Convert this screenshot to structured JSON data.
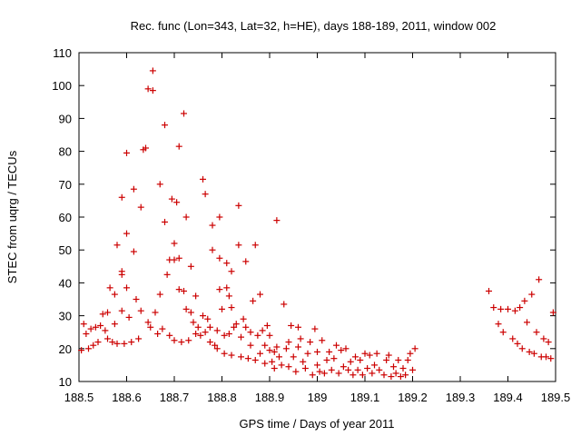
{
  "chart_data": {
    "type": "scatter",
    "title": "Rec. func (Lon=343, Lat=32, h=HE), days 188-189, 2011, window 002",
    "xlabel": "GPS time / Days of year 2011",
    "ylabel": "STEC from uqrg / TECUs",
    "xlim": [
      188.5,
      189.5
    ],
    "ylim": [
      10,
      110
    ],
    "xticks": [
      188.5,
      188.6,
      188.7,
      188.8,
      188.9,
      189.0,
      189.1,
      189.2,
      189.3,
      189.4,
      189.5
    ],
    "xtick_labels": [
      "188.5",
      "188.6",
      "188.7",
      "188.8",
      "188.9",
      "189",
      "189.1",
      "189.2",
      "189.3",
      "189.4",
      "189.5"
    ],
    "yticks": [
      10,
      20,
      30,
      40,
      50,
      60,
      70,
      80,
      90,
      100,
      110
    ],
    "ytick_labels": [
      "10",
      "20",
      "30",
      "40",
      "50",
      "60",
      "70",
      "80",
      "90",
      "100",
      "110"
    ],
    "marker_color": "#cc0000",
    "series": [
      {
        "name": "STEC",
        "points": [
          [
            188.505,
            19.5
          ],
          [
            188.51,
            27.5
          ],
          [
            188.515,
            24.5
          ],
          [
            188.52,
            20.0
          ],
          [
            188.525,
            26.0
          ],
          [
            188.53,
            21.0
          ],
          [
            188.535,
            26.5
          ],
          [
            188.54,
            22.0
          ],
          [
            188.545,
            27.0
          ],
          [
            188.55,
            30.5
          ],
          [
            188.555,
            25.5
          ],
          [
            188.56,
            23.0
          ],
          [
            188.56,
            31.0
          ],
          [
            188.565,
            38.5
          ],
          [
            188.57,
            22.0
          ],
          [
            188.575,
            27.5
          ],
          [
            188.575,
            36.5
          ],
          [
            188.58,
            51.5
          ],
          [
            188.58,
            21.5
          ],
          [
            188.59,
            31.5
          ],
          [
            188.59,
            42.5
          ],
          [
            188.59,
            43.5
          ],
          [
            188.59,
            66.0
          ],
          [
            188.595,
            21.5
          ],
          [
            188.6,
            79.5
          ],
          [
            188.6,
            55.0
          ],
          [
            188.6,
            38.5
          ],
          [
            188.605,
            29.5
          ],
          [
            188.61,
            22.0
          ],
          [
            188.615,
            49.5
          ],
          [
            188.615,
            68.5
          ],
          [
            188.62,
            35.0
          ],
          [
            188.625,
            23.0
          ],
          [
            188.63,
            63.0
          ],
          [
            188.63,
            31.5
          ],
          [
            188.635,
            80.5
          ],
          [
            188.64,
            81.0
          ],
          [
            188.645,
            28.0
          ],
          [
            188.645,
            99.0
          ],
          [
            188.65,
            26.5
          ],
          [
            188.655,
            98.5
          ],
          [
            188.655,
            104.5
          ],
          [
            188.66,
            31.0
          ],
          [
            188.665,
            24.5
          ],
          [
            188.67,
            70.0
          ],
          [
            188.67,
            36.5
          ],
          [
            188.675,
            26.0
          ],
          [
            188.68,
            88.0
          ],
          [
            188.68,
            58.5
          ],
          [
            188.685,
            42.5
          ],
          [
            188.69,
            24.0
          ],
          [
            188.69,
            47.0
          ],
          [
            188.695,
            65.5
          ],
          [
            188.7,
            52.0
          ],
          [
            188.7,
            47.0
          ],
          [
            188.7,
            22.5
          ],
          [
            188.705,
            64.5
          ],
          [
            188.71,
            81.5
          ],
          [
            188.71,
            47.5
          ],
          [
            188.71,
            38.0
          ],
          [
            188.715,
            22.0
          ],
          [
            188.72,
            37.5
          ],
          [
            188.72,
            91.5
          ],
          [
            188.725,
            32.0
          ],
          [
            188.725,
            60.0
          ],
          [
            188.73,
            22.5
          ],
          [
            188.735,
            31.0
          ],
          [
            188.735,
            45.0
          ],
          [
            188.74,
            28.0
          ],
          [
            188.745,
            36.0
          ],
          [
            188.745,
            24.5
          ],
          [
            188.75,
            26.5
          ],
          [
            188.755,
            24.0
          ],
          [
            188.76,
            30.0
          ],
          [
            188.76,
            71.5
          ],
          [
            188.765,
            67.0
          ],
          [
            188.765,
            25.0
          ],
          [
            188.77,
            29.0
          ],
          [
            188.775,
            26.5
          ],
          [
            188.775,
            22.0
          ],
          [
            188.78,
            57.5
          ],
          [
            188.78,
            50.0
          ],
          [
            188.785,
            21.0
          ],
          [
            188.79,
            25.5
          ],
          [
            188.79,
            20.0
          ],
          [
            188.795,
            47.5
          ],
          [
            188.795,
            38.0
          ],
          [
            188.795,
            60.0
          ],
          [
            188.8,
            32.0
          ],
          [
            188.805,
            24.0
          ],
          [
            188.805,
            18.5
          ],
          [
            188.81,
            46.0
          ],
          [
            188.81,
            38.5
          ],
          [
            188.815,
            36.0
          ],
          [
            188.815,
            24.5
          ],
          [
            188.82,
            43.5
          ],
          [
            188.82,
            32.5
          ],
          [
            188.82,
            18.0
          ],
          [
            188.825,
            26.5
          ],
          [
            188.83,
            27.5
          ],
          [
            188.835,
            63.5
          ],
          [
            188.835,
            51.5
          ],
          [
            188.84,
            17.5
          ],
          [
            188.84,
            23.5
          ],
          [
            188.845,
            29.0
          ],
          [
            188.85,
            46.5
          ],
          [
            188.85,
            26.5
          ],
          [
            188.855,
            17.0
          ],
          [
            188.86,
            25.0
          ],
          [
            188.86,
            21.0
          ],
          [
            188.865,
            34.5
          ],
          [
            188.87,
            51.5
          ],
          [
            188.87,
            16.5
          ],
          [
            188.875,
            24.0
          ],
          [
            188.88,
            36.5
          ],
          [
            188.88,
            18.5
          ],
          [
            188.885,
            25.5
          ],
          [
            188.89,
            15.5
          ],
          [
            188.89,
            21.0
          ],
          [
            188.895,
            27.0
          ],
          [
            188.9,
            19.5
          ],
          [
            188.9,
            24.0
          ],
          [
            188.905,
            16.0
          ],
          [
            188.91,
            14.0
          ],
          [
            188.91,
            19.0
          ],
          [
            188.915,
            59.0
          ],
          [
            188.915,
            20.5
          ],
          [
            188.92,
            17.5
          ],
          [
            188.925,
            15.0
          ],
          [
            188.93,
            33.5
          ],
          [
            188.935,
            20.0
          ],
          [
            188.94,
            14.5
          ],
          [
            188.94,
            22.0
          ],
          [
            188.945,
            27.0
          ],
          [
            188.95,
            17.5
          ],
          [
            188.955,
            13.0
          ],
          [
            188.96,
            20.5
          ],
          [
            188.96,
            26.5
          ],
          [
            188.965,
            23.0
          ],
          [
            188.97,
            16.0
          ],
          [
            188.975,
            14.0
          ],
          [
            188.98,
            18.5
          ],
          [
            188.985,
            22.0
          ],
          [
            188.99,
            12.0
          ],
          [
            188.995,
            26.0
          ],
          [
            189.0,
            15.0
          ],
          [
            189.0,
            19.0
          ],
          [
            189.005,
            13.0
          ],
          [
            189.01,
            22.5
          ],
          [
            189.015,
            12.5
          ],
          [
            189.02,
            16.5
          ],
          [
            189.025,
            19.0
          ],
          [
            189.03,
            13.5
          ],
          [
            189.035,
            17.0
          ],
          [
            189.04,
            21.0
          ],
          [
            189.045,
            12.5
          ],
          [
            189.05,
            19.5
          ],
          [
            189.055,
            14.5
          ],
          [
            189.06,
            20.0
          ],
          [
            189.065,
            13.5
          ],
          [
            189.07,
            16.0
          ],
          [
            189.075,
            12.0
          ],
          [
            189.08,
            17.5
          ],
          [
            189.085,
            13.5
          ],
          [
            189.09,
            16.5
          ],
          [
            189.095,
            12.0
          ],
          [
            189.1,
            18.5
          ],
          [
            189.105,
            14.0
          ],
          [
            189.11,
            18.0
          ],
          [
            189.115,
            12.5
          ],
          [
            189.12,
            15.0
          ],
          [
            189.125,
            18.5
          ],
          [
            189.13,
            13.5
          ],
          [
            189.14,
            12.0
          ],
          [
            189.145,
            16.5
          ],
          [
            189.15,
            18.0
          ],
          [
            189.155,
            11.5
          ],
          [
            189.16,
            14.5
          ],
          [
            189.165,
            12.5
          ],
          [
            189.17,
            16.5
          ],
          [
            189.175,
            11.5
          ],
          [
            189.18,
            14.0
          ],
          [
            189.185,
            12.0
          ],
          [
            189.19,
            16.5
          ],
          [
            189.195,
            18.5
          ],
          [
            189.2,
            13.5
          ],
          [
            189.205,
            20.0
          ],
          [
            189.36,
            37.5
          ],
          [
            189.37,
            32.5
          ],
          [
            189.38,
            27.5
          ],
          [
            189.385,
            32.0
          ],
          [
            189.39,
            25.0
          ],
          [
            189.4,
            32.0
          ],
          [
            189.41,
            23.0
          ],
          [
            189.415,
            31.5
          ],
          [
            189.42,
            21.5
          ],
          [
            189.425,
            32.5
          ],
          [
            189.43,
            20.0
          ],
          [
            189.435,
            34.5
          ],
          [
            189.44,
            28.0
          ],
          [
            189.445,
            19.0
          ],
          [
            189.45,
            36.5
          ],
          [
            189.455,
            18.5
          ],
          [
            189.46,
            25.0
          ],
          [
            189.465,
            41.0
          ],
          [
            189.47,
            17.5
          ],
          [
            189.475,
            23.0
          ],
          [
            189.48,
            17.5
          ],
          [
            189.485,
            22.0
          ],
          [
            189.49,
            17.0
          ],
          [
            189.495,
            31.0
          ]
        ]
      }
    ]
  }
}
